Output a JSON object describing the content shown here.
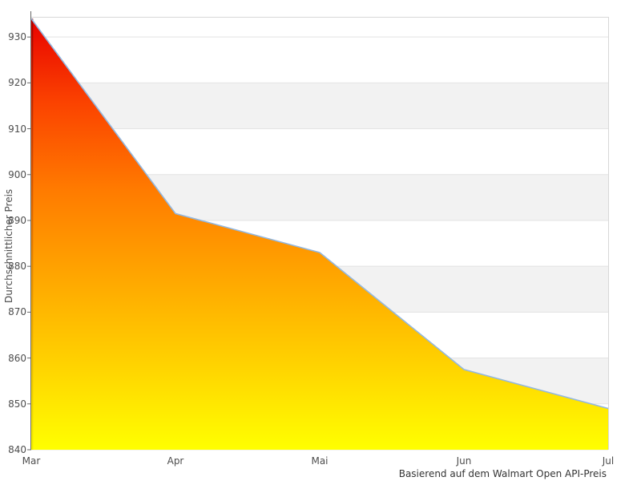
{
  "chart_data": {
    "type": "area",
    "categories": [
      "Mar",
      "Apr",
      "Mai",
      "Jun",
      "Jul"
    ],
    "values": [
      934,
      891.5,
      883,
      857.5,
      849
    ],
    "title": "",
    "xlabel": "Basierend auf dem Walmart Open API-Preis",
    "ylabel": "Durchschnittlicher Preis",
    "ylim": [
      840,
      934.4
    ],
    "yticks": [
      840,
      850,
      860,
      870,
      880,
      890,
      900,
      910,
      920,
      930
    ],
    "grid": "horizontal-with-alternating-bands",
    "legend": "none",
    "alternate_band_color": "#f2f2f2",
    "gridline_color": "#e3e3e3",
    "plot_border_color": "#d8d8d8",
    "axis_line_color": "#666666",
    "axis_text_color": "#4d4d4d",
    "line_color": "#93b8e0",
    "area_gradient": [
      "#e80000",
      "#fb4300",
      "#ff7b00",
      "#ffa600",
      "#ffd200",
      "#ffff00"
    ],
    "left_edge_gradient": [
      "#9b0000",
      "#c45800",
      "#cfc400"
    ]
  }
}
